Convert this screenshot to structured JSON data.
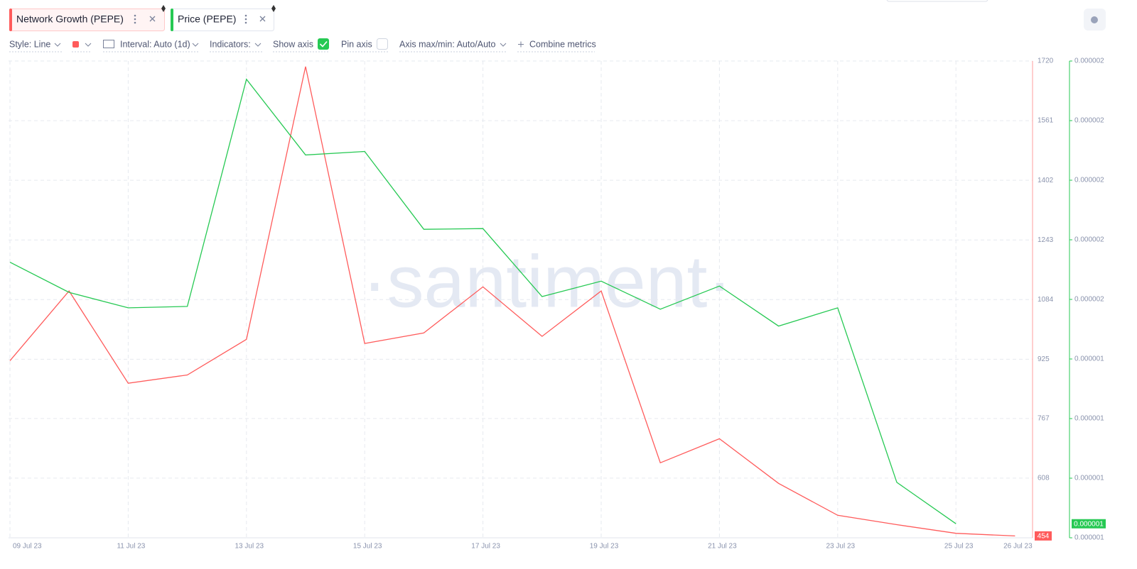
{
  "tabs": [
    "Network Growth (PEPE)",
    "Price (PEPE)"
  ],
  "toolbar": {
    "style": "Style: Line",
    "interval": "Interval: Auto (1d)",
    "indicators": "Indicators:",
    "show_axis": "Show axis",
    "pin_axis": "Pin axis",
    "axis_minmax": "Axis max/min: Auto/Auto",
    "combine": "Combine metrics"
  },
  "chart_data": {
    "type": "line",
    "watermark": "·santiment·",
    "categories": [
      "09 Jul 23",
      null,
      "11 Jul 23",
      null,
      "13 Jul 23",
      null,
      "15 Jul 23",
      null,
      "17 Jul 23",
      null,
      "19 Jul 23",
      null,
      "21 Jul 23",
      null,
      "23 Jul 23",
      null,
      "25 Jul 23",
      "26 Jul 23"
    ],
    "ylim": [
      449,
      1720
    ],
    "yticks": [
      1720,
      1561,
      1402,
      1243,
      1084,
      925,
      767,
      608
    ],
    "y2lim": [
      1.22e-06,
      1.9e-06
    ],
    "y2ticks": [
      {
        "value": 1.9e-06,
        "label": "0.000002"
      },
      {
        "value": 1.815e-06,
        "label": "0.000002"
      },
      {
        "value": 1.73e-06,
        "label": "0.000002"
      },
      {
        "value": 1.645e-06,
        "label": "0.000002"
      },
      {
        "value": 1.56e-06,
        "label": "0.000002"
      },
      {
        "value": 1.475e-06,
        "label": "0.000001"
      },
      {
        "value": 1.39e-06,
        "label": "0.000001"
      },
      {
        "value": 1.305e-06,
        "label": "0.000001"
      },
      {
        "value": 1.22e-06,
        "label": "0.000001"
      }
    ],
    "grid": true,
    "series": [
      {
        "name": "Network Growth (PEPE)",
        "color": "#ff5b5b",
        "values": [
          921,
          1107,
          861,
          883,
          978,
          1705,
          967,
          995,
          1118,
          986,
          1107,
          649,
          713,
          594,
          509,
          484,
          461,
          454
        ]
      },
      {
        "name": "Price (PEPE)",
        "color": "#26c953",
        "axis": "y2",
        "values": [
          1.613e-06,
          1.57e-06,
          1.548e-06,
          1.55e-06,
          1.874e-06,
          1.766e-06,
          1.771e-06,
          1.66e-06,
          1.661e-06,
          1.564e-06,
          1.586e-06,
          1.546e-06,
          1.579e-06,
          1.522e-06,
          1.548e-06,
          1.299e-06,
          1.24e-06,
          null
        ],
        "value_labels": [
          null,
          null,
          null,
          null,
          null,
          null,
          null,
          null,
          null,
          null,
          null,
          null,
          null,
          null,
          null,
          null,
          "0.000001",
          null
        ]
      }
    ]
  }
}
